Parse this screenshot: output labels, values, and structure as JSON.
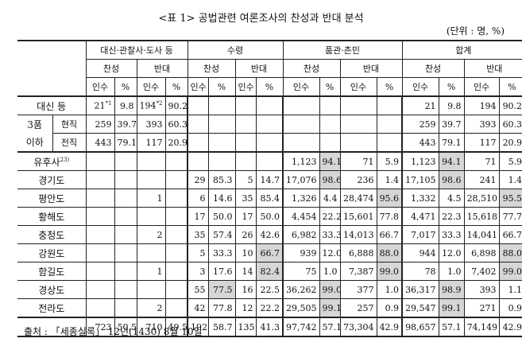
{
  "title": "<표 1>  공법관련 여론조사의 찬성과 반대 분석",
  "unit": "(단위 : 명, %)",
  "source": "출처 : 「세종실록」 12년(1430) 8월 10일",
  "headers": {
    "groups": [
      "대신·관찰사·도사 등",
      "수령",
      "품관·촌민",
      "합계"
    ],
    "chanseong": "찬성",
    "bandae": "반대",
    "insu": "인수",
    "pct": "%"
  },
  "rows": {
    "daesin": {
      "label": "대신 등",
      "cells": [
        "21",
        "9.8",
        "194",
        "90.2",
        "",
        "",
        "",
        "",
        "",
        "",
        "",
        "",
        "21",
        "9.8",
        "194",
        "90.2"
      ],
      "sup1": "*1",
      "sup3": "*2"
    },
    "hyeonjik": {
      "group": "3품",
      "group2": "이하",
      "label": "현직",
      "cells": [
        "259",
        "39.7",
        "393",
        "60.3",
        "",
        "",
        "",
        "",
        "",
        "",
        "",
        "",
        "259",
        "39.7",
        "393",
        "60.3"
      ]
    },
    "jeonjik": {
      "label": "전직",
      "cells": [
        "443",
        "79.1",
        "117",
        "20.9",
        "",
        "",
        "",
        "",
        "",
        "",
        "",
        "",
        "443",
        "79.1",
        "117",
        "20.9"
      ]
    },
    "yuhusa": {
      "label": "유후사",
      "sup": "23)",
      "cells": [
        "",
        "",
        "",
        "",
        "",
        "",
        "",
        "",
        "1,123",
        "94.1",
        "71",
        "5.9",
        "1,123",
        "94.1",
        "71",
        "5.9"
      ]
    },
    "gyeonggi": {
      "label": "경기도",
      "cells": [
        "",
        "",
        "",
        "",
        "29",
        "85.3",
        "5",
        "14.7",
        "17,076",
        "98.6",
        "236",
        "1.4",
        "17,105",
        "98.6",
        "241",
        "1.4"
      ]
    },
    "pyeongan": {
      "label": "평안도",
      "cells": [
        "",
        "",
        "1",
        "",
        "6",
        "14.6",
        "35",
        "85.4",
        "1,326",
        "4.4",
        "28,474",
        "95.6",
        "1,332",
        "4.5",
        "28,510",
        "95.5"
      ]
    },
    "hwanghae": {
      "label": "황해도",
      "cells": [
        "",
        "",
        "",
        "",
        "17",
        "50.0",
        "17",
        "50.0",
        "4,454",
        "22.2",
        "15,601",
        "77.8",
        "4,471",
        "22.3",
        "15,618",
        "77.7"
      ]
    },
    "chungcheong": {
      "label": "충청도",
      "cells": [
        "",
        "",
        "2",
        "",
        "35",
        "57.4",
        "26",
        "42.6",
        "6,982",
        "33.3",
        "14,013",
        "66.7",
        "7,017",
        "33.3",
        "14,041",
        "66.7"
      ]
    },
    "gangwon": {
      "label": "강원도",
      "cells": [
        "",
        "",
        "",
        "",
        "5",
        "33.3",
        "10",
        "66.7",
        "939",
        "12.0",
        "6,888",
        "88.0",
        "944",
        "12.0",
        "6,898",
        "88.0"
      ]
    },
    "hamgil": {
      "label": "함길도",
      "cells": [
        "",
        "",
        "1",
        "",
        "3",
        "17.6",
        "14",
        "82.4",
        "75",
        "1.0",
        "7,387",
        "99.0",
        "78",
        "1.0",
        "7,402",
        "99.0"
      ]
    },
    "gyeongsang": {
      "label": "경상도",
      "cells": [
        "",
        "",
        "",
        "",
        "55",
        "77.5",
        "16",
        "22.5",
        "36,262",
        "99.0",
        "377",
        "1.0",
        "36,317",
        "98.9",
        "393",
        "1.1"
      ]
    },
    "jeolla": {
      "label": "전라도",
      "cells": [
        "",
        "",
        "2",
        "",
        "42",
        "77.8",
        "12",
        "22.2",
        "29,505",
        "99.1",
        "257",
        "0.9",
        "29,547",
        "99.1",
        "271",
        "0.9"
      ]
    },
    "total": {
      "label": "",
      "cells": [
        "723",
        "50.5",
        "710",
        "49.5",
        "192",
        "58.7",
        "135",
        "41.3",
        "97,742",
        "57.1",
        "73,304",
        "42.9",
        "98,657",
        "57.1",
        "74,149",
        "42.9"
      ]
    }
  },
  "shaded_cells": {
    "daesin": [
      3,
      15
    ],
    "yuhusa": [
      9,
      13
    ],
    "gyeonggi": [
      9,
      13
    ],
    "pyeongan": [
      11,
      15
    ],
    "chungcheong": [],
    "gangwon": [
      7,
      11,
      15
    ],
    "hamgil": [
      7,
      11,
      15
    ],
    "gyeongsang": [
      5,
      9,
      13
    ],
    "jeolla": [
      9,
      13
    ]
  }
}
